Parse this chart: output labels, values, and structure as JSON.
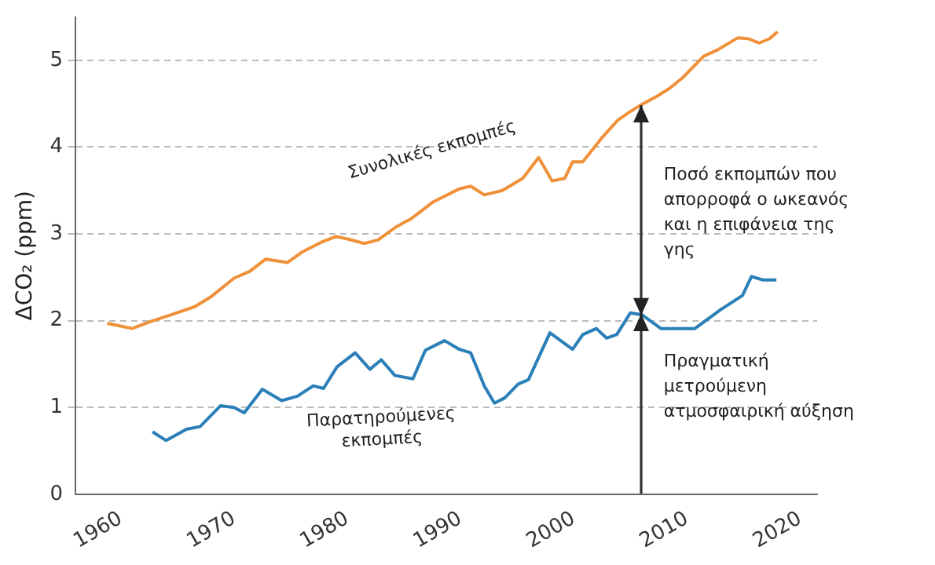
{
  "chart_data": {
    "type": "line",
    "ylabel": "ΔCO₂ (ppm)",
    "xlim": [
      1956,
      2021.5
    ],
    "xticks": [
      1960,
      1970,
      1980,
      1990,
      2000,
      2010,
      2020
    ],
    "ylim": [
      0,
      5.5
    ],
    "yticks": [
      0,
      1,
      2,
      3,
      4,
      5
    ],
    "grid": "y",
    "legend": false,
    "marker": "none",
    "line_style": "solid",
    "series": [
      {
        "name": "Συνολικές εκπομπές",
        "color": "#f0913a",
        "x": [
          1958.8,
          1961,
          1962.6,
          1964.7,
          1966.5,
          1967.9,
          1970,
          1971.4,
          1972.8,
          1974.7,
          1976,
          1977.8,
          1979,
          1980.1,
          1981.5,
          1982.7,
          1984.3,
          1985.7,
          1987.6,
          1989.9,
          1990.9,
          1992.1,
          1993.7,
          1995.5,
          1996.9,
          1998.1,
          1999.2,
          1999.9,
          2000.8,
          2002.5,
          2003.9,
          2005,
          2006,
          2007.4,
          2008.5,
          2009.7,
          2011.5,
          2012.7,
          2014.5,
          2015.4,
          2016.4,
          2017.3,
          2018
        ],
        "values": [
          1.97,
          1.91,
          1.99,
          2.08,
          2.16,
          2.27,
          2.49,
          2.57,
          2.71,
          2.67,
          2.79,
          2.91,
          2.97,
          2.94,
          2.89,
          2.93,
          3.08,
          3.18,
          3.37,
          3.52,
          3.55,
          3.45,
          3.5,
          3.64,
          3.88,
          3.61,
          3.64,
          3.83,
          3.83,
          4.11,
          4.31,
          4.41,
          4.49,
          4.59,
          4.68,
          4.81,
          5.05,
          5.12,
          5.26,
          5.25,
          5.2,
          5.25,
          5.33
        ]
      },
      {
        "name": "Παρατηρούμενες εκπομπές",
        "color": "#2b7fb8",
        "x": [
          1962.8,
          1964,
          1965.8,
          1967,
          1968.8,
          1970,
          1970.9,
          1972.5,
          1974.2,
          1975.6,
          1977,
          1977.9,
          1979.1,
          1980.7,
          1982,
          1983,
          1984.2,
          1985.8,
          1986.9,
          1988.6,
          1989.9,
          1990.9,
          1992.1,
          1993,
          1993.9,
          1995.1,
          1996,
          1997.9,
          1999.9,
          2000.8,
          2002,
          2002.9,
          2003.8,
          2005,
          2006,
          2007.7,
          2010.7,
          2013,
          2014.9,
          2015.7,
          2016.7,
          2017.9
        ],
        "values": [
          0.72,
          0.62,
          0.75,
          0.78,
          1.02,
          1,
          0.94,
          1.21,
          1.08,
          1.13,
          1.25,
          1.22,
          1.47,
          1.63,
          1.44,
          1.55,
          1.37,
          1.33,
          1.66,
          1.77,
          1.67,
          1.63,
          1.25,
          1.05,
          1.11,
          1.27,
          1.32,
          1.86,
          1.67,
          1.84,
          1.91,
          1.8,
          1.84,
          2.09,
          2.07,
          1.91,
          1.91,
          2.13,
          2.29,
          2.51,
          2.47,
          2.47
        ]
      }
    ],
    "annotations": [
      "Ποσό εκπομπών που απορροφά ο ωκεανός και η επιφάνεια της γης",
      {
        "text": "Πραγματική μετρούμενη ατμοσφαιρική αύξηση",
        "x": 2006,
        "y": 2.07
      }
    ]
  }
}
